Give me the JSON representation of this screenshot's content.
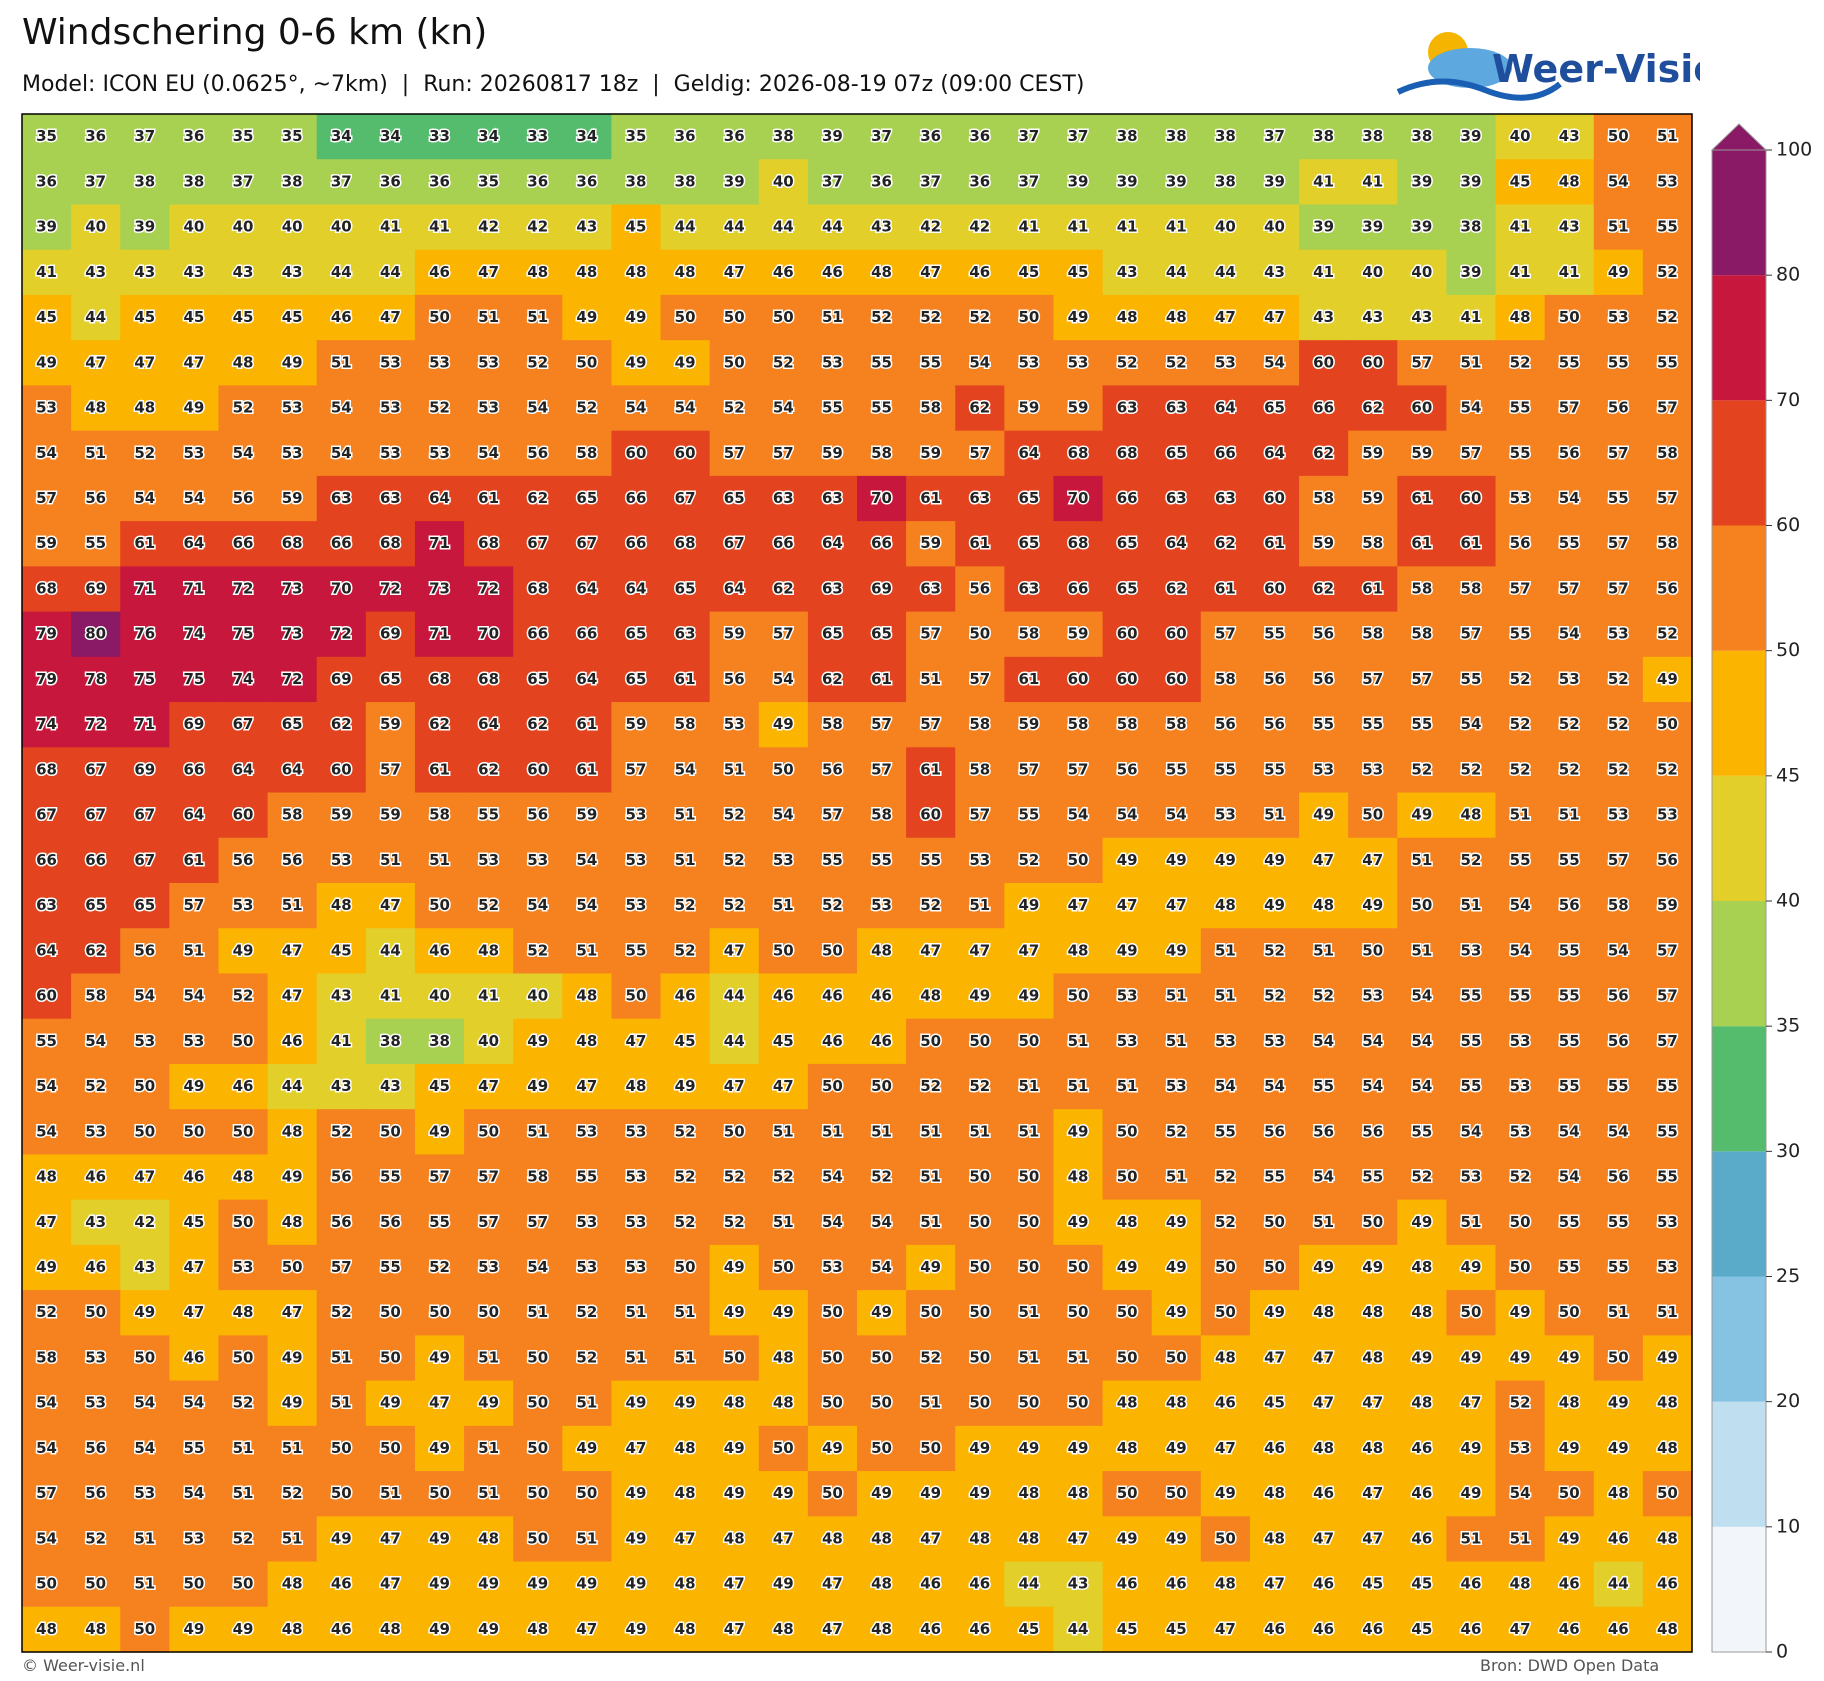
{
  "header": {
    "title": "Windschering 0-6 km (kn)",
    "subtitle": "Model: ICON EU (0.0625°, ~7km)  |  Run: 20260817 18z  |  Geldig: 2026-08-19 07z (09:00 CEST)"
  },
  "logo": {
    "text": "Weer-Visie"
  },
  "grid": {
    "values": [
      [
        35,
        36,
        37,
        36,
        35,
        35,
        34,
        34,
        33,
        34,
        33,
        34,
        35,
        36,
        36,
        38,
        39,
        37,
        36,
        36,
        37,
        37,
        38,
        38,
        38,
        37,
        38,
        38,
        38,
        39,
        40,
        43,
        50,
        51
      ],
      [
        36,
        37,
        38,
        38,
        37,
        38,
        37,
        36,
        36,
        35,
        36,
        36,
        38,
        38,
        39,
        40,
        37,
        36,
        37,
        36,
        37,
        39,
        39,
        39,
        38,
        39,
        41,
        41,
        39,
        39,
        45,
        48,
        54,
        53
      ],
      [
        39,
        40,
        39,
        40,
        40,
        40,
        40,
        41,
        41,
        42,
        42,
        43,
        45,
        44,
        44,
        44,
        44,
        43,
        42,
        42,
        41,
        41,
        41,
        41,
        40,
        40,
        39,
        39,
        39,
        38,
        41,
        43,
        51,
        55
      ],
      [
        41,
        43,
        43,
        43,
        43,
        43,
        44,
        44,
        46,
        47,
        48,
        48,
        48,
        48,
        47,
        46,
        46,
        48,
        47,
        46,
        45,
        45,
        43,
        44,
        44,
        43,
        41,
        40,
        40,
        39,
        41,
        41,
        49,
        52
      ],
      [
        45,
        44,
        45,
        45,
        45,
        45,
        46,
        47,
        50,
        51,
        51,
        49,
        49,
        50,
        50,
        50,
        51,
        52,
        52,
        52,
        50,
        49,
        48,
        48,
        47,
        47,
        43,
        43,
        43,
        41,
        48,
        50,
        53,
        52
      ],
      [
        49,
        47,
        47,
        47,
        48,
        49,
        51,
        53,
        53,
        53,
        52,
        50,
        49,
        49,
        50,
        52,
        53,
        55,
        55,
        54,
        53,
        53,
        52,
        52,
        53,
        54,
        60,
        60,
        57,
        51,
        52,
        55,
        55,
        55
      ],
      [
        53,
        48,
        48,
        49,
        52,
        53,
        54,
        53,
        52,
        53,
        54,
        52,
        54,
        54,
        52,
        54,
        55,
        55,
        58,
        62,
        59,
        59,
        63,
        63,
        64,
        65,
        66,
        62,
        60,
        54,
        55,
        57,
        56,
        57
      ],
      [
        54,
        51,
        52,
        53,
        54,
        53,
        54,
        53,
        53,
        54,
        56,
        58,
        60,
        60,
        57,
        57,
        59,
        58,
        59,
        57,
        64,
        68,
        68,
        65,
        66,
        64,
        62,
        59,
        59,
        57,
        55,
        56,
        57,
        58
      ],
      [
        57,
        56,
        54,
        54,
        56,
        59,
        63,
        63,
        64,
        61,
        62,
        65,
        66,
        67,
        65,
        63,
        63,
        70,
        61,
        63,
        65,
        70,
        66,
        63,
        63,
        60,
        58,
        59,
        61,
        60,
        53,
        54,
        55,
        57
      ],
      [
        59,
        55,
        61,
        64,
        66,
        68,
        66,
        68,
        71,
        68,
        67,
        67,
        66,
        68,
        67,
        66,
        64,
        66,
        59,
        61,
        65,
        68,
        65,
        64,
        62,
        61,
        59,
        58,
        61,
        61,
        56,
        55,
        57,
        58
      ],
      [
        68,
        69,
        71,
        71,
        72,
        73,
        70,
        72,
        73,
        72,
        68,
        64,
        64,
        65,
        64,
        62,
        63,
        69,
        63,
        56,
        63,
        66,
        65,
        62,
        61,
        60,
        62,
        61,
        58,
        58,
        57,
        57,
        57,
        56
      ],
      [
        79,
        80,
        76,
        74,
        75,
        73,
        72,
        69,
        71,
        70,
        66,
        66,
        65,
        63,
        59,
        57,
        65,
        65,
        57,
        50,
        58,
        59,
        60,
        60,
        57,
        55,
        56,
        58,
        58,
        57,
        55,
        54,
        53,
        52
      ],
      [
        79,
        78,
        75,
        75,
        74,
        72,
        69,
        65,
        68,
        68,
        65,
        64,
        65,
        61,
        56,
        54,
        62,
        61,
        51,
        57,
        61,
        60,
        60,
        60,
        58,
        56,
        56,
        57,
        57,
        55,
        52,
        53,
        52,
        49
      ],
      [
        74,
        72,
        71,
        69,
        67,
        65,
        62,
        59,
        62,
        64,
        62,
        61,
        59,
        58,
        53,
        49,
        58,
        57,
        57,
        58,
        59,
        58,
        58,
        58,
        56,
        56,
        55,
        55,
        55,
        54,
        52,
        52,
        52,
        50
      ],
      [
        68,
        67,
        69,
        66,
        64,
        64,
        60,
        57,
        61,
        62,
        60,
        61,
        57,
        54,
        51,
        50,
        56,
        57,
        61,
        58,
        57,
        57,
        56,
        55,
        55,
        55,
        53,
        53,
        52,
        52,
        52,
        52,
        52,
        52
      ],
      [
        67,
        67,
        67,
        64,
        60,
        58,
        59,
        59,
        58,
        55,
        56,
        59,
        53,
        51,
        52,
        54,
        57,
        58,
        60,
        57,
        55,
        54,
        54,
        54,
        53,
        51,
        49,
        50,
        49,
        48,
        51,
        51,
        53,
        53
      ],
      [
        66,
        66,
        67,
        61,
        56,
        56,
        53,
        51,
        51,
        53,
        53,
        54,
        53,
        51,
        52,
        53,
        55,
        55,
        55,
        53,
        52,
        50,
        49,
        49,
        49,
        49,
        47,
        47,
        51,
        52,
        55,
        55,
        57,
        56
      ],
      [
        63,
        65,
        65,
        57,
        53,
        51,
        48,
        47,
        50,
        52,
        54,
        54,
        53,
        52,
        52,
        51,
        52,
        53,
        52,
        51,
        49,
        47,
        47,
        47,
        48,
        49,
        48,
        49,
        50,
        51,
        54,
        56,
        58,
        59
      ],
      [
        64,
        62,
        56,
        51,
        49,
        47,
        45,
        44,
        46,
        48,
        52,
        51,
        55,
        52,
        47,
        50,
        50,
        48,
        47,
        47,
        47,
        48,
        49,
        49,
        51,
        52,
        51,
        50,
        51,
        53,
        54,
        55,
        54,
        57
      ],
      [
        60,
        58,
        54,
        54,
        52,
        47,
        43,
        41,
        40,
        41,
        40,
        48,
        50,
        46,
        44,
        46,
        46,
        46,
        48,
        49,
        49,
        50,
        53,
        51,
        51,
        52,
        52,
        53,
        54,
        55,
        55,
        55,
        56,
        57
      ],
      [
        55,
        54,
        53,
        53,
        50,
        46,
        41,
        38,
        38,
        40,
        49,
        48,
        47,
        45,
        44,
        45,
        46,
        46,
        50,
        50,
        50,
        51,
        53,
        51,
        53,
        53,
        54,
        54,
        54,
        55,
        53,
        55,
        56,
        57
      ],
      [
        54,
        52,
        50,
        49,
        46,
        44,
        43,
        43,
        45,
        47,
        49,
        47,
        48,
        49,
        47,
        47,
        50,
        50,
        52,
        52,
        51,
        51,
        51,
        53,
        54,
        54,
        55,
        54,
        54,
        55,
        53,
        55,
        55,
        55
      ],
      [
        54,
        53,
        50,
        50,
        50,
        48,
        52,
        50,
        49,
        50,
        51,
        53,
        53,
        52,
        50,
        51,
        51,
        51,
        51,
        51,
        51,
        49,
        50,
        52,
        55,
        56,
        56,
        56,
        55,
        54,
        53,
        54,
        54,
        55
      ],
      [
        48,
        46,
        47,
        46,
        48,
        49,
        56,
        55,
        57,
        57,
        58,
        55,
        53,
        52,
        52,
        52,
        54,
        52,
        51,
        50,
        50,
        48,
        50,
        51,
        52,
        55,
        54,
        55,
        52,
        53,
        52,
        54,
        56,
        55
      ],
      [
        47,
        43,
        42,
        45,
        50,
        48,
        56,
        56,
        55,
        57,
        57,
        53,
        53,
        52,
        52,
        51,
        54,
        54,
        51,
        50,
        50,
        49,
        48,
        49,
        52,
        50,
        51,
        50,
        49,
        51,
        50,
        55,
        55,
        53
      ],
      [
        49,
        46,
        43,
        47,
        53,
        50,
        57,
        55,
        52,
        53,
        54,
        53,
        53,
        50,
        49,
        50,
        53,
        54,
        49,
        50,
        50,
        50,
        49,
        49,
        50,
        50,
        49,
        49,
        48,
        49,
        50,
        55,
        55,
        53
      ],
      [
        52,
        50,
        49,
        47,
        48,
        47,
        52,
        50,
        50,
        50,
        51,
        52,
        51,
        51,
        49,
        49,
        50,
        49,
        50,
        50,
        51,
        50,
        50,
        49,
        50,
        49,
        48,
        48,
        48,
        50,
        49,
        50,
        51,
        51
      ],
      [
        58,
        53,
        50,
        46,
        50,
        49,
        51,
        50,
        49,
        51,
        50,
        52,
        51,
        51,
        50,
        48,
        50,
        50,
        52,
        50,
        51,
        51,
        50,
        50,
        48,
        47,
        47,
        48,
        49,
        49,
        49,
        49,
        50,
        49
      ],
      [
        54,
        53,
        54,
        54,
        52,
        49,
        51,
        49,
        47,
        49,
        50,
        51,
        49,
        49,
        48,
        48,
        50,
        50,
        51,
        50,
        50,
        50,
        48,
        48,
        46,
        45,
        47,
        47,
        48,
        47,
        52,
        48,
        49,
        48
      ],
      [
        54,
        56,
        54,
        55,
        51,
        51,
        50,
        50,
        49,
        51,
        50,
        49,
        47,
        48,
        49,
        50,
        49,
        50,
        50,
        49,
        49,
        49,
        48,
        49,
        47,
        46,
        48,
        48,
        46,
        49,
        53,
        49,
        49,
        48
      ],
      [
        57,
        56,
        53,
        54,
        51,
        52,
        50,
        51,
        50,
        51,
        50,
        50,
        49,
        48,
        49,
        49,
        50,
        49,
        49,
        49,
        48,
        48,
        50,
        50,
        49,
        48,
        46,
        47,
        46,
        49,
        54,
        50,
        48,
        50
      ],
      [
        54,
        52,
        51,
        53,
        52,
        51,
        49,
        47,
        49,
        48,
        50,
        51,
        49,
        47,
        48,
        47,
        48,
        48,
        47,
        48,
        48,
        47,
        49,
        49,
        50,
        48,
        47,
        47,
        46,
        51,
        51,
        49,
        46,
        48
      ],
      [
        50,
        50,
        51,
        50,
        50,
        48,
        46,
        47,
        49,
        49,
        49,
        49,
        49,
        48,
        47,
        49,
        47,
        48,
        46,
        46,
        44,
        43,
        46,
        46,
        48,
        47,
        46,
        45,
        45,
        46,
        48,
        46,
        44,
        46
      ],
      [
        48,
        48,
        50,
        49,
        49,
        48,
        46,
        48,
        49,
        49,
        48,
        47,
        49,
        48,
        47,
        48,
        47,
        48,
        46,
        46,
        45,
        44,
        45,
        45,
        47,
        46,
        46,
        46,
        45,
        46,
        47,
        46,
        46,
        48
      ]
    ]
  },
  "colorbar": {
    "levels": [
      0,
      10,
      20,
      25,
      30,
      35,
      40,
      45,
      50,
      60,
      70,
      80,
      100
    ],
    "colors": [
      "#f2f6fa",
      "#bfdff0",
      "#86c3e3",
      "#5aaac9",
      "#55bb6d",
      "#a8d152",
      "#e2cf2a",
      "#fbb400",
      "#f5821f",
      "#e3441f",
      "#c8173c",
      "#8a1966"
    ],
    "extend": "max"
  },
  "footer": {
    "left": "© Weer-visie.nl",
    "right": "Bron: DWD Open Data"
  }
}
